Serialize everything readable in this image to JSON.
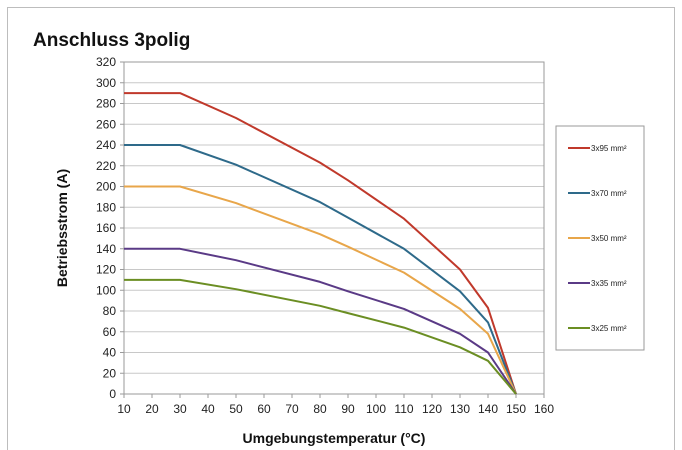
{
  "chart_data": {
    "type": "line",
    "title": "Anschluss 3polig",
    "xlabel": "Umgebungstemperatur  (°C)",
    "ylabel": "Betriebsstrom  (A)",
    "xlim": [
      10,
      160
    ],
    "ylim": [
      0,
      320
    ],
    "xticks": [
      10,
      20,
      30,
      40,
      50,
      60,
      70,
      80,
      90,
      100,
      110,
      120,
      130,
      140,
      150,
      160
    ],
    "yticks": [
      0,
      20,
      40,
      60,
      80,
      100,
      120,
      140,
      160,
      180,
      200,
      220,
      240,
      260,
      280,
      300,
      320
    ],
    "grid": "horizontal",
    "legend_position": "right",
    "series": [
      {
        "name": "3x95 mm²",
        "color": "#c0392b",
        "x": [
          10,
          30,
          50,
          80,
          90,
          110,
          130,
          140,
          150
        ],
        "y": [
          290,
          290,
          266,
          223,
          206,
          169,
          120,
          83,
          0
        ]
      },
      {
        "name": "3x70 mm²",
        "color": "#2e6a8a",
        "x": [
          10,
          30,
          50,
          80,
          90,
          110,
          130,
          140,
          150
        ],
        "y": [
          240,
          240,
          221,
          185,
          170,
          140,
          99,
          69,
          0
        ]
      },
      {
        "name": "3x50 mm²",
        "color": "#e8a64a",
        "x": [
          10,
          30,
          50,
          80,
          90,
          110,
          130,
          140,
          150
        ],
        "y": [
          200,
          200,
          184,
          154,
          142,
          117,
          82,
          58,
          0
        ]
      },
      {
        "name": "3x35 mm²",
        "color": "#5a3a86",
        "x": [
          10,
          30,
          50,
          80,
          90,
          110,
          130,
          140,
          150
        ],
        "y": [
          140,
          140,
          129,
          108,
          99,
          82,
          58,
          40,
          0
        ]
      },
      {
        "name": "3x25 mm²",
        "color": "#6b8e23",
        "x": [
          10,
          30,
          50,
          80,
          90,
          110,
          130,
          140,
          150
        ],
        "y": [
          110,
          110,
          101,
          85,
          78,
          64,
          45,
          32,
          0
        ]
      }
    ]
  }
}
